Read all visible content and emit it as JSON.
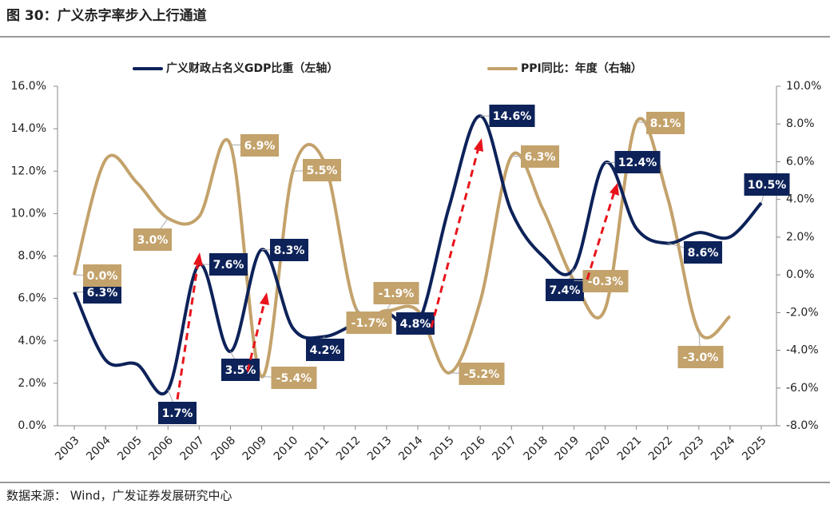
{
  "chart_data": {
    "type": "line",
    "title": "图 30：广义赤字率步入上行通道",
    "source": "数据来源：  Wind，广发证券发展研究中心",
    "categories": [
      "2003",
      "2004",
      "2005",
      "2006",
      "2007",
      "2008",
      "2009",
      "2010",
      "2011",
      "2012",
      "2013",
      "2014",
      "2015",
      "2016",
      "2017",
      "2018",
      "2019",
      "2020",
      "2021",
      "2022",
      "2023",
      "2024",
      "2025"
    ],
    "series": [
      {
        "name": "广义财政占名义GDP比重（左轴）",
        "color": "#0d2259",
        "axis": "y",
        "values": [
          6.3,
          3.1,
          2.9,
          1.7,
          7.6,
          3.5,
          8.3,
          4.6,
          4.2,
          4.8,
          5.3,
          4.8,
          10.3,
          14.6,
          10.1,
          8.0,
          7.4,
          12.4,
          9.3,
          8.6,
          9.1,
          8.9,
          10.5
        ],
        "value_labels": [
          "6.3%",
          null,
          null,
          "1.7%",
          "7.6%",
          "3.5%",
          "8.3%",
          null,
          "4.2%",
          null,
          null,
          "4.8%",
          null,
          "14.6%",
          null,
          null,
          "7.4%",
          "12.4%",
          null,
          "8.6%",
          null,
          null,
          "10.5%"
        ]
      },
      {
        "name": "PPI同比：年度（右轴）",
        "color": "#c3a26b",
        "axis": "y2",
        "values": [
          0.0,
          6.1,
          4.9,
          3.0,
          3.1,
          6.9,
          -5.4,
          5.5,
          6.0,
          -1.7,
          -1.9,
          -1.9,
          -5.2,
          -1.4,
          6.3,
          3.5,
          -0.3,
          -1.8,
          8.1,
          4.1,
          -3.0,
          -2.2,
          null
        ],
        "value_labels": [
          "0.0%",
          null,
          null,
          "3.0%",
          null,
          "6.9%",
          "-5.4%",
          "5.5%",
          null,
          "-1.7%",
          "-1.9%",
          null,
          "-5.2%",
          null,
          "6.3%",
          null,
          "-0.3%",
          null,
          "8.1%",
          null,
          "-3.0%",
          null,
          null
        ]
      }
    ],
    "ylim": [
      0,
      16
    ],
    "yticks": [
      {
        "value": 0,
        "label": "0.0%"
      },
      {
        "value": 2,
        "label": "2.0%"
      },
      {
        "value": 4,
        "label": "4.0%"
      },
      {
        "value": 6,
        "label": "6.0%"
      },
      {
        "value": 8,
        "label": "8.0%"
      },
      {
        "value": 10,
        "label": "10.0%"
      },
      {
        "value": 12,
        "label": "12.0%"
      },
      {
        "value": 14,
        "label": "14.0%"
      },
      {
        "value": 16,
        "label": "16.0%"
      }
    ],
    "y2lim": [
      -8,
      10
    ],
    "y2ticks": [
      {
        "value": -8,
        "label": "-8.0%"
      },
      {
        "value": -6,
        "label": "-6.0%"
      },
      {
        "value": -4,
        "label": "-4.0%"
      },
      {
        "value": -2,
        "label": "-2.0%"
      },
      {
        "value": 0,
        "label": "0.0%"
      },
      {
        "value": 2,
        "label": "2.0%"
      },
      {
        "value": 4,
        "label": "4.0%"
      },
      {
        "value": 6,
        "label": "6.0%"
      },
      {
        "value": 8,
        "label": "8.0%"
      },
      {
        "value": 10,
        "label": "10.0%"
      }
    ],
    "legend": "top",
    "grid": false
  }
}
